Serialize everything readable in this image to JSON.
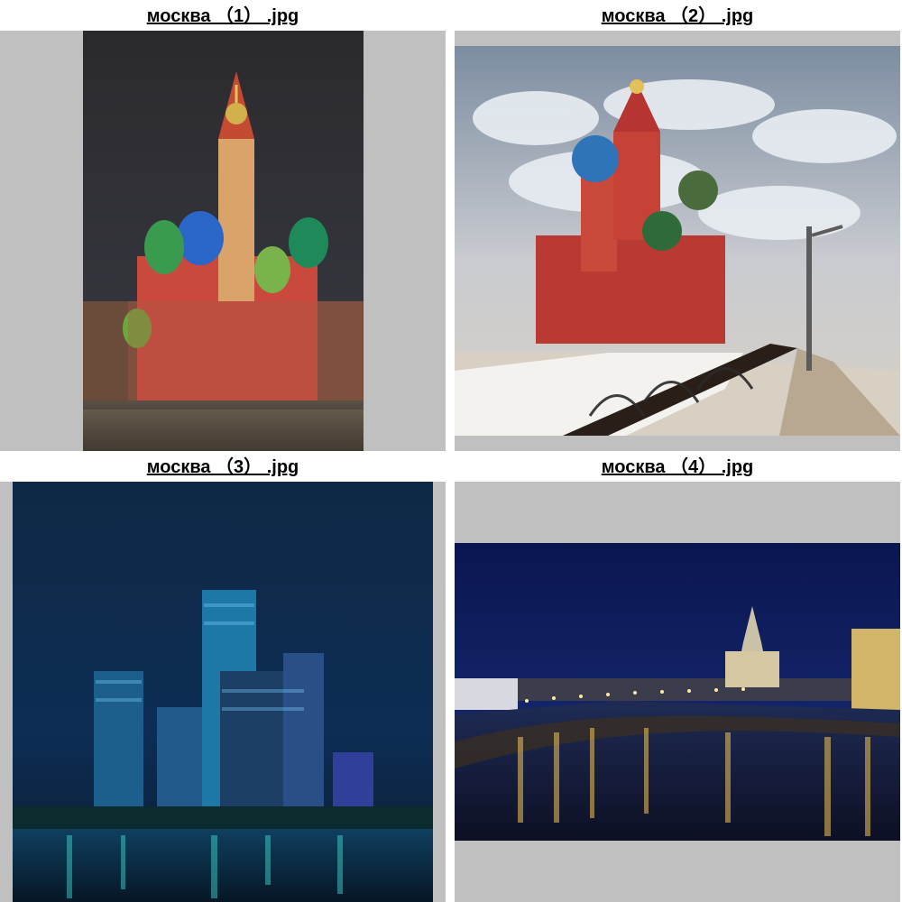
{
  "gallery": {
    "items": [
      {
        "filename": "москва （1） .jpg"
      },
      {
        "filename": "москва （2） .jpg"
      },
      {
        "filename": "москва （3） .jpg"
      },
      {
        "filename": "москва （4） .jpg"
      }
    ]
  },
  "colors": {
    "frame_background": "#c0c0c0",
    "page_background": "#ffffff",
    "caption_text": "#000000"
  }
}
